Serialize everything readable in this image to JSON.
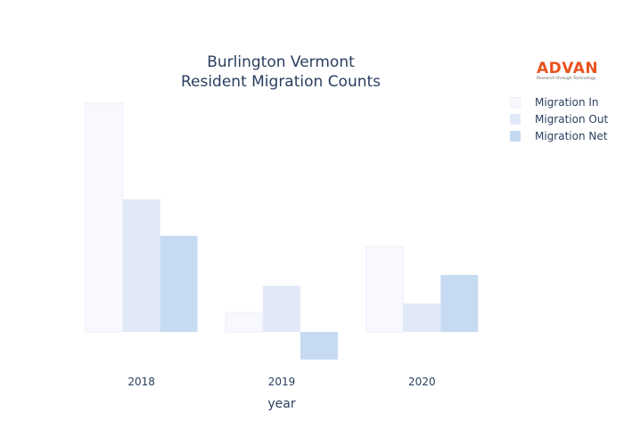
{
  "chart_data": {
    "type": "bar",
    "title_line1": "Burlington Vermont",
    "title_line2": "Resident Migration Counts",
    "xlabel": "year",
    "ylabel": "",
    "categories": [
      "2018",
      "2019",
      "2020"
    ],
    "series": [
      {
        "name": "Migration In",
        "values": [
          257,
          22,
          96
        ],
        "color": "#f8f9fe"
      },
      {
        "name": "Migration Out",
        "values": [
          149,
          52,
          32
        ],
        "color": "#e1e9f8"
      },
      {
        "name": "Migration Net",
        "values": [
          108,
          -31,
          64
        ],
        "color": "#c6daf2"
      }
    ],
    "ylim": [
      -40,
      273
    ],
    "grid": false,
    "legend_position": "top-right",
    "values_note": "relative, no y-axis shown"
  },
  "logo": {
    "name": "ADVAN",
    "tagline": "Research through Technology"
  }
}
